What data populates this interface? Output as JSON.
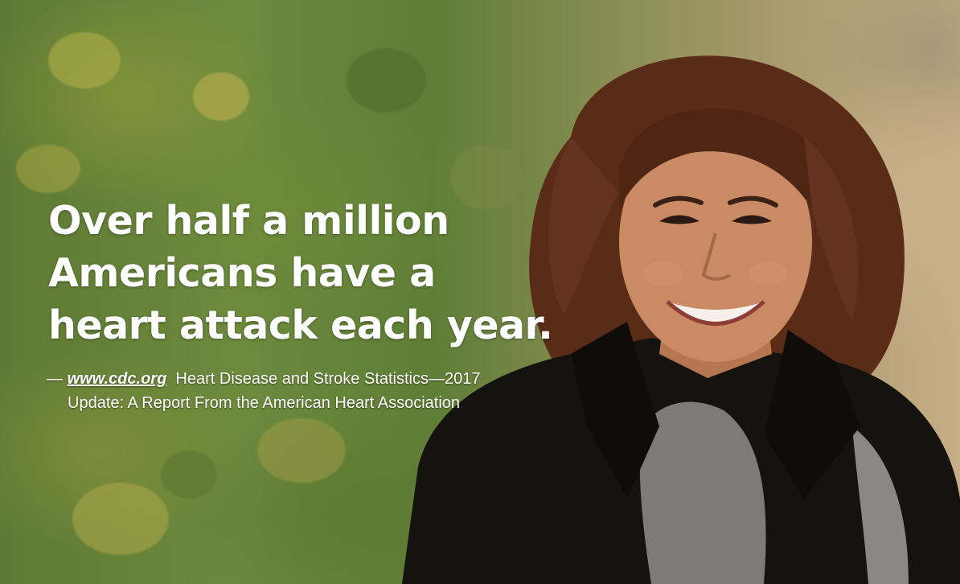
{
  "headline": {
    "line1": "Over half a million",
    "line2": "Americans have a",
    "line3": "heart attack each year."
  },
  "source": {
    "dash": "—",
    "link": "www.cdc.org",
    "line1_text": "Heart Disease and Stroke Statistics—2017",
    "line2_text": "Update: A Report From the American Heart Association"
  },
  "colors": {
    "text": "#ffffff",
    "foliage": "#6d8a3d",
    "coat": "#15130f",
    "hair": "#5a2c18",
    "skin": "#c98a64"
  }
}
